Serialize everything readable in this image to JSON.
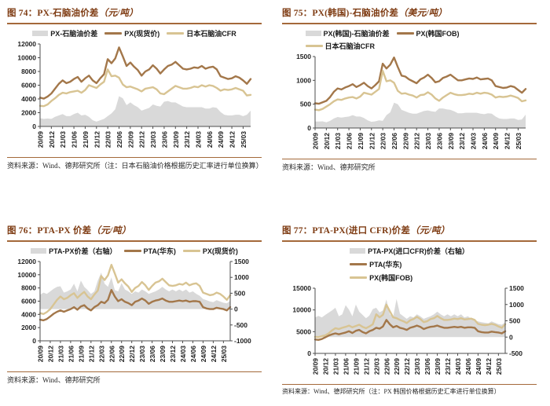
{
  "colors": {
    "title": "#7e3b12",
    "rule": "#a4693a",
    "area": "#d9d9d9",
    "brown": "#a3774a",
    "tan": "#d8c493",
    "axis": "#4d4d4d",
    "text": "#1f1f1f"
  },
  "x_categories": [
    "20/09",
    "20/12",
    "21/03",
    "21/06",
    "21/09",
    "21/12",
    "22/03",
    "22/06",
    "22/09",
    "22/12",
    "23/03",
    "23/06",
    "23/09",
    "23/12",
    "24/03",
    "24/06",
    "24/09",
    "24/12",
    "25/03"
  ],
  "chart_data": [
    {
      "type": "combo",
      "title_prefix": "图 74：",
      "title_main": "PX-石脑油价差",
      "title_unit": "（元/吨）",
      "source": "资料来源：Wind、德邦研究所（注：日本石脑油价格根据历史汇率进行单位换算）",
      "left_axis": {
        "min": 0,
        "max": 12000,
        "step": 2000
      },
      "legend": [
        {
          "type": "area",
          "color": "area",
          "label": "PX-石脑油价差"
        },
        {
          "type": "line",
          "color": "brown",
          "label": "PX(现货价)"
        },
        {
          "type": "line",
          "color": "tan",
          "label": "日本石脑油CFR"
        }
      ],
      "series": [
        {
          "name": "PX-石脑油价差",
          "type": "area",
          "axis": "left",
          "color": "area",
          "values": [
            1200,
            1100,
            1150,
            1100,
            1400,
            1600,
            1800,
            1500,
            1500,
            1800,
            2000,
            1600,
            1700,
            1400,
            900,
            700,
            900,
            1100,
            1500,
            1900,
            2500,
            4400,
            4100,
            3100,
            3500,
            3100,
            2800,
            2300,
            2500,
            2700,
            3200,
            3000,
            2900,
            3600,
            3700,
            3500,
            3500,
            3200,
            2900,
            2800,
            2800,
            2800,
            2800,
            2800,
            2600,
            2600,
            2800,
            2700,
            2100,
            1700,
            1600,
            1600,
            1700,
            1700,
            1500,
            1700,
            2300
          ]
        },
        {
          "name": "PX(现货价)",
          "type": "line",
          "axis": "left",
          "color": "brown",
          "values": [
            4200,
            4050,
            4350,
            4800,
            5500,
            6200,
            6700,
            6300,
            6500,
            6900,
            7200,
            6500,
            7000,
            7400,
            6700,
            6300,
            7000,
            7600,
            9800,
            9200,
            9900,
            11500,
            10200,
            8800,
            9300,
            8700,
            8200,
            7400,
            8000,
            8300,
            8900,
            8400,
            7700,
            8300,
            8800,
            9000,
            9400,
            8900,
            8400,
            8300,
            8400,
            8600,
            8500,
            8800,
            8400,
            8600,
            8700,
            8300,
            7300,
            7100,
            6900,
            7000,
            7300,
            7100,
            6700,
            6200,
            6900
          ]
        },
        {
          "name": "日本石脑油CFR",
          "type": "line",
          "axis": "left",
          "color": "tan",
          "values": [
            3000,
            2950,
            3200,
            3700,
            4100,
            4600,
            4900,
            4800,
            5000,
            5100,
            5200,
            4900,
            5300,
            6000,
            5800,
            5600,
            6100,
            6500,
            8300,
            7300,
            7400,
            7100,
            6100,
            5700,
            5800,
            5600,
            5400,
            5100,
            5500,
            5600,
            5700,
            5400,
            4800,
            4700,
            5100,
            5500,
            5900,
            5700,
            5500,
            5500,
            5600,
            5800,
            5700,
            6000,
            5800,
            6000,
            5900,
            5600,
            5200,
            5400,
            5300,
            5400,
            5600,
            5400,
            5200,
            4500,
            4600
          ]
        }
      ]
    },
    {
      "type": "combo",
      "title_prefix": "图 75：",
      "title_main": "PX(韩国)-石脑油价差",
      "title_unit": "（美元/吨）",
      "source": "资料来源：Wind、德邦研究所",
      "left_axis": {
        "min": 0,
        "max": 1500,
        "step": 500
      },
      "legend": [
        {
          "type": "area",
          "color": "area",
          "label": "PX(韩国)-石脑油价差"
        },
        {
          "type": "line",
          "color": "brown",
          "label": "PX(韩国FOB)"
        },
        {
          "type": "line",
          "color": "tan",
          "label": "日本石脑油CFR"
        }
      ],
      "series": [
        {
          "name": "PX(韩国)-石脑油价差",
          "type": "area",
          "axis": "left",
          "color": "area",
          "values": [
            135,
            135,
            140,
            120,
            150,
            200,
            230,
            220,
            230,
            240,
            270,
            240,
            240,
            210,
            160,
            130,
            140,
            160,
            150,
            270,
            330,
            530,
            500,
            380,
            350,
            320,
            300,
            300,
            330,
            360,
            370,
            350,
            340,
            410,
            410,
            390,
            380,
            350,
            310,
            310,
            320,
            320,
            320,
            320,
            300,
            290,
            310,
            300,
            240,
            200,
            190,
            190,
            200,
            200,
            170,
            180,
            280
          ]
        },
        {
          "name": "PX(韩国FOB)",
          "type": "line",
          "axis": "left",
          "color": "brown",
          "values": [
            520,
            510,
            540,
            570,
            650,
            760,
            830,
            810,
            850,
            880,
            920,
            860,
            900,
            950,
            880,
            830,
            900,
            980,
            1350,
            1250,
            1330,
            1480,
            1280,
            1100,
            1080,
            1020,
            980,
            940,
            1020,
            1060,
            1120,
            1050,
            960,
            980,
            1050,
            1080,
            1120,
            1060,
            1000,
            1000,
            1020,
            1040,
            1030,
            1060,
            1020,
            1030,
            1040,
            1000,
            880,
            860,
            840,
            850,
            880,
            860,
            800,
            740,
            820
          ]
        },
        {
          "name": "日本石脑油CFR",
          "type": "line",
          "axis": "left",
          "color": "tan",
          "values": [
            385,
            375,
            400,
            450,
            500,
            560,
            600,
            590,
            620,
            640,
            650,
            620,
            660,
            740,
            720,
            700,
            760,
            820,
            1200,
            980,
            1000,
            950,
            780,
            720,
            730,
            700,
            680,
            640,
            690,
            700,
            750,
            700,
            620,
            570,
            640,
            690,
            740,
            710,
            690,
            690,
            700,
            720,
            710,
            740,
            720,
            740,
            730,
            700,
            640,
            660,
            650,
            660,
            680,
            660,
            630,
            560,
            580
          ]
        }
      ]
    },
    {
      "type": "combo",
      "title_prefix": "图 76：",
      "title_main": "PTA-PX 价差",
      "title_unit": "（元/吨）",
      "source": "资料来源：Wind、德邦研究所",
      "left_axis": {
        "min": 0,
        "max": 12000,
        "step": 2000
      },
      "right_axis": {
        "min": -1000,
        "max": 1500,
        "step": 500
      },
      "legend": [
        {
          "type": "area",
          "color": "area",
          "label": "PTA-PX价差（右轴）"
        },
        {
          "type": "line",
          "color": "brown",
          "label": "PTA(华东)"
        },
        {
          "type": "line",
          "color": "tan",
          "label": "PX(现货价)"
        }
      ],
      "series": [
        {
          "name": "PTA-PX价差（右轴）",
          "type": "area",
          "axis": "right",
          "color": "area",
          "values": [
            450,
            520,
            480,
            560,
            640,
            700,
            720,
            520,
            560,
            620,
            800,
            560,
            900,
            700,
            600,
            480,
            560,
            900,
            1150,
            800,
            700,
            1000,
            600,
            560,
            820,
            620,
            560,
            480,
            560,
            520,
            620,
            560,
            480,
            520,
            560,
            620,
            700,
            620,
            560,
            620,
            560,
            620,
            560,
            620,
            520,
            560,
            480,
            420,
            320,
            280,
            240,
            220,
            280,
            240,
            200,
            180,
            260
          ]
        },
        {
          "name": "PTA(华东)",
          "type": "line",
          "axis": "left",
          "color": "brown",
          "values": [
            3200,
            3100,
            3300,
            3700,
            4100,
            4400,
            4600,
            4400,
            4600,
            4800,
            5100,
            4700,
            5200,
            5400,
            4900,
            4600,
            5100,
            5400,
            5900,
            5700,
            6200,
            7700,
            6700,
            6000,
            6300,
            5900,
            5700,
            5400,
            5900,
            6100,
            6400,
            6100,
            5600,
            5900,
            6100,
            6200,
            6400,
            6100,
            5900,
            5900,
            6000,
            6100,
            6000,
            6100,
            5900,
            6000,
            6000,
            5900,
            5100,
            4900,
            4800,
            4800,
            5000,
            4900,
            4800,
            4600,
            5100
          ]
        },
        {
          "name": "PX(现货价)",
          "type": "line",
          "axis": "left",
          "color": "tan",
          "values": [
            4200,
            4050,
            4350,
            4800,
            5500,
            6200,
            6700,
            6300,
            6500,
            6900,
            7200,
            6500,
            7000,
            7400,
            6700,
            6300,
            7000,
            7600,
            9800,
            9200,
            9900,
            11500,
            10200,
            8800,
            9300,
            8700,
            8200,
            7400,
            8000,
            8300,
            8900,
            8400,
            7700,
            8300,
            8800,
            9000,
            9400,
            8900,
            8400,
            8300,
            8400,
            8600,
            8500,
            8800,
            8400,
            8600,
            8700,
            8300,
            7300,
            7100,
            6900,
            7000,
            7300,
            7100,
            6700,
            6200,
            6900
          ]
        }
      ]
    },
    {
      "type": "combo",
      "title_prefix": "图 77：",
      "title_main": "PTA-PX(进口 CFR)价差",
      "title_unit": "（元/吨）",
      "source": "资料来源：Wind、德邦研究所（注：PX 韩国价格根据历史汇率进行单位换算）",
      "left_axis": {
        "min": 0,
        "max": 15000,
        "step": 5000
      },
      "right_axis": {
        "min": -500,
        "max": 1500,
        "step": 500
      },
      "legend": [
        {
          "type": "area",
          "color": "area",
          "label": "PTA-PX(进口CFR)价差（右轴）"
        },
        {
          "type": "line",
          "color": "brown",
          "label": "PTA(华东)"
        },
        {
          "type": "line",
          "color": "tan",
          "label": "PX(韩国FOB)"
        }
      ],
      "series": [
        {
          "name": "PTA-PX(进口CFR)价差（右轴）",
          "type": "area",
          "axis": "right",
          "color": "area",
          "values": [
            600,
            650,
            600,
            680,
            750,
            820,
            900,
            640,
            700,
            980,
            840,
            640,
            1000,
            780,
            680,
            580,
            660,
            860,
            900,
            760,
            820,
            1150,
            700,
            620,
            1170,
            720,
            640,
            560,
            640,
            600,
            700,
            640,
            560,
            600,
            640,
            700,
            780,
            700,
            640,
            700,
            640,
            700,
            640,
            700,
            600,
            640,
            560,
            520,
            480,
            460,
            440,
            420,
            480,
            440,
            400,
            380,
            460
          ]
        },
        {
          "name": "PTA(华东)",
          "type": "line",
          "axis": "left",
          "color": "brown",
          "values": [
            3200,
            3100,
            3300,
            3700,
            4100,
            4400,
            4600,
            4400,
            4600,
            4800,
            5100,
            4700,
            5200,
            5400,
            4900,
            4600,
            5100,
            5400,
            5900,
            5700,
            6200,
            7700,
            6700,
            6000,
            6300,
            5900,
            5700,
            5400,
            5900,
            6100,
            6400,
            6100,
            5600,
            5900,
            6100,
            6200,
            6400,
            6100,
            5900,
            5900,
            6000,
            6100,
            6000,
            6100,
            5900,
            6000,
            6000,
            5900,
            5100,
            4900,
            4800,
            4800,
            5000,
            4900,
            4800,
            4600,
            5100
          ]
        },
        {
          "name": "PX(韩国FOB)",
          "type": "line",
          "axis": "left",
          "color": "tan",
          "values": [
            3800,
            3750,
            3950,
            4150,
            4600,
            5300,
            5800,
            5600,
            5900,
            6100,
            6400,
            6000,
            6300,
            6600,
            6100,
            5800,
            6200,
            6700,
            9000,
            8300,
            8900,
            11200,
            9700,
            8300,
            8100,
            7700,
            7400,
            7000,
            7600,
            7900,
            8400,
            7900,
            7200,
            7400,
            7900,
            8100,
            8600,
            8100,
            7700,
            7700,
            7800,
            8000,
            7900,
            8100,
            7800,
            7900,
            8000,
            7700,
            6800,
            6600,
            6500,
            6600,
            6800,
            6600,
            6200,
            5900,
            6700
          ]
        }
      ]
    }
  ]
}
